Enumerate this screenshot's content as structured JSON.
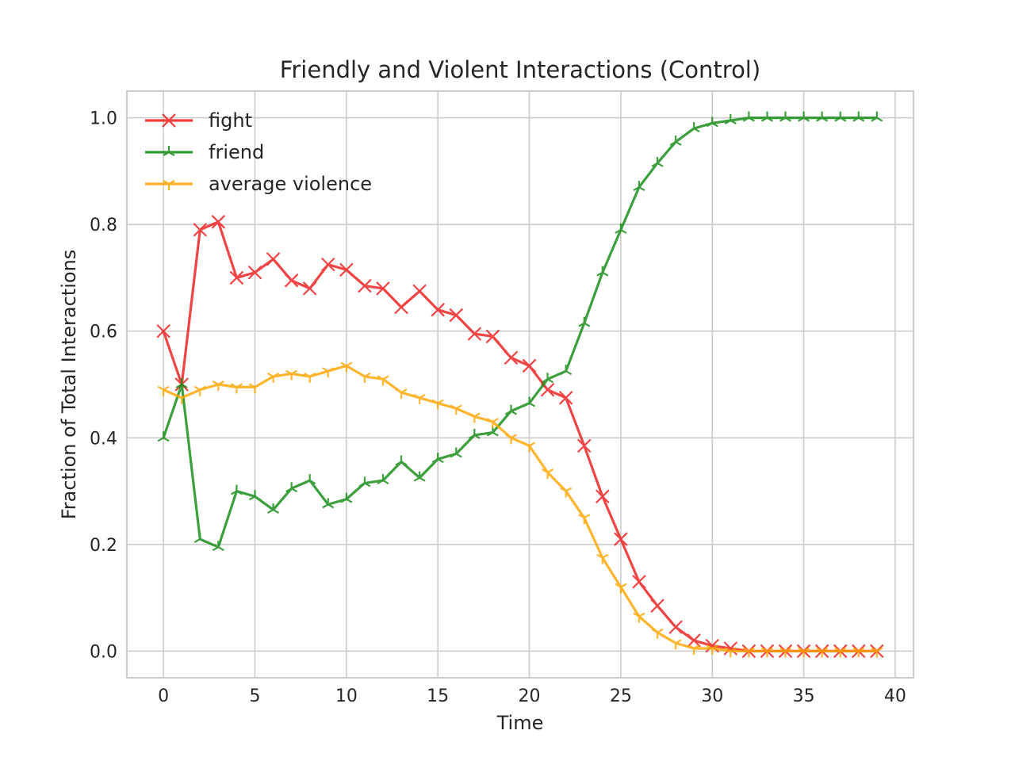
{
  "chart_data": {
    "type": "line",
    "title": "Friendly and Violent Interactions (Control)",
    "xlabel": "Time",
    "ylabel": "Fraction of Total Interactions",
    "xlim": [
      -2,
      41
    ],
    "ylim": [
      -0.05,
      1.05
    ],
    "xticks": [
      0,
      5,
      10,
      15,
      20,
      25,
      30,
      35,
      40
    ],
    "yticks": [
      0.0,
      0.2,
      0.4,
      0.6,
      0.8,
      1.0
    ],
    "xtick_labels": [
      "0",
      "5",
      "10",
      "15",
      "20",
      "25",
      "30",
      "35",
      "40"
    ],
    "ytick_labels": [
      "0.0",
      "0.2",
      "0.4",
      "0.6",
      "0.8",
      "1.0"
    ],
    "grid": true,
    "legend_position": "top-left",
    "x": [
      0,
      1,
      2,
      3,
      4,
      5,
      6,
      7,
      8,
      9,
      10,
      11,
      12,
      13,
      14,
      15,
      16,
      17,
      18,
      19,
      20,
      21,
      22,
      23,
      24,
      25,
      26,
      27,
      28,
      29,
      30,
      31,
      32,
      33,
      34,
      35,
      36,
      37,
      38,
      39
    ],
    "series": [
      {
        "name": "fight",
        "color": "#ee1c1c",
        "marker": "x",
        "values": [
          0.6,
          0.5,
          0.79,
          0.805,
          0.7,
          0.71,
          0.735,
          0.695,
          0.68,
          0.725,
          0.715,
          0.685,
          0.68,
          0.645,
          0.675,
          0.64,
          0.63,
          0.595,
          0.59,
          0.55,
          0.535,
          0.49,
          0.475,
          0.385,
          0.29,
          0.21,
          0.13,
          0.085,
          0.045,
          0.02,
          0.01,
          0.005,
          0.0,
          0.0,
          0.0,
          0.0,
          0.0,
          0.0,
          0.0,
          0.0
        ]
      },
      {
        "name": "friend",
        "color": "#138a13",
        "marker": "tri_up",
        "values": [
          0.4,
          0.5,
          0.21,
          0.195,
          0.3,
          0.29,
          0.265,
          0.305,
          0.32,
          0.275,
          0.285,
          0.315,
          0.32,
          0.355,
          0.325,
          0.36,
          0.37,
          0.405,
          0.41,
          0.45,
          0.465,
          0.51,
          0.525,
          0.615,
          0.71,
          0.79,
          0.87,
          0.915,
          0.955,
          0.98,
          0.99,
          0.995,
          1.0,
          1.0,
          1.0,
          1.0,
          1.0,
          1.0,
          1.0,
          1.0
        ]
      },
      {
        "name": "average violence",
        "color": "#ffa500",
        "marker": "tri_down",
        "values": [
          0.49,
          0.475,
          0.49,
          0.5,
          0.495,
          0.495,
          0.515,
          0.52,
          0.515,
          0.525,
          0.535,
          0.515,
          0.51,
          0.485,
          0.475,
          0.465,
          0.455,
          0.44,
          0.43,
          0.4,
          0.385,
          0.335,
          0.3,
          0.25,
          0.175,
          0.12,
          0.065,
          0.035,
          0.015,
          0.005,
          0.005,
          0.0,
          0.0,
          0.0,
          0.0,
          0.0,
          0.0,
          0.0,
          0.0,
          0.0
        ]
      }
    ]
  }
}
